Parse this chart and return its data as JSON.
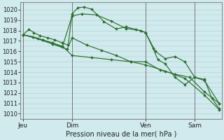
{
  "background_color": "#d0eaee",
  "grid_color": "#aacccc",
  "line_color": "#2d6e2d",
  "marker_color": "#2d6e2d",
  "title": "Pression niveau de la mer( hPa )",
  "ylabel_values": [
    1010,
    1011,
    1012,
    1013,
    1014,
    1015,
    1016,
    1017,
    1018,
    1019,
    1020
  ],
  "ylim": [
    1009.5,
    1020.7
  ],
  "xlim": [
    -0.05,
    4.05
  ],
  "xtick_labels": [
    "Jeu",
    "Dim",
    "Ven",
    "Sam"
  ],
  "xtick_positions": [
    0.0,
    1.0,
    2.5,
    3.5
  ],
  "vline_positions": [
    0.0,
    1.0,
    2.5,
    3.5
  ],
  "series": [
    {
      "x": [
        0.0,
        0.12,
        0.22,
        0.35,
        0.5,
        0.65,
        0.8,
        0.92,
        1.0,
        1.12,
        1.25,
        1.4,
        1.65,
        1.9,
        2.1,
        2.3,
        2.5,
        2.65,
        2.75,
        2.9,
        3.1,
        3.3,
        3.5,
        3.7,
        3.85,
        4.0
      ],
      "y": [
        1017.6,
        1018.1,
        1017.8,
        1017.5,
        1017.3,
        1017.1,
        1016.8,
        1016.6,
        1019.6,
        1020.2,
        1020.25,
        1020.05,
        1018.85,
        1018.15,
        1018.35,
        1018.1,
        1017.8,
        1016.3,
        1015.2,
        1014.8,
        1013.5,
        1012.8,
        1013.5,
        1013.3,
        1011.5,
        1010.5
      ]
    },
    {
      "x": [
        0.0,
        0.2,
        0.4,
        0.6,
        0.8,
        1.0,
        1.2,
        1.5,
        1.8,
        2.1,
        2.4,
        2.5,
        2.7,
        2.9,
        3.1,
        3.3,
        3.5,
        3.7,
        4.0
      ],
      "y": [
        1017.6,
        1017.4,
        1017.1,
        1016.8,
        1016.4,
        1019.4,
        1019.6,
        1019.5,
        1018.9,
        1018.2,
        1018.0,
        1017.8,
        1016.0,
        1015.3,
        1015.5,
        1015.0,
        1013.5,
        1013.2,
        1011.0
      ]
    },
    {
      "x": [
        0.0,
        0.3,
        0.6,
        0.9,
        1.0,
        1.3,
        1.6,
        1.9,
        2.2,
        2.5,
        2.8,
        3.1,
        3.4,
        3.7,
        4.0
      ],
      "y": [
        1017.6,
        1017.2,
        1016.7,
        1016.2,
        1017.3,
        1016.6,
        1016.1,
        1015.6,
        1015.0,
        1015.0,
        1014.2,
        1013.8,
        1013.5,
        1012.1,
        1011.0
      ]
    },
    {
      "x": [
        0.0,
        0.4,
        0.8,
        1.0,
        1.4,
        1.8,
        2.2,
        2.5,
        2.9,
        3.3,
        3.7,
        4.0
      ],
      "y": [
        1017.6,
        1017.1,
        1016.5,
        1015.6,
        1015.4,
        1015.2,
        1015.0,
        1014.7,
        1014.1,
        1013.4,
        1011.8,
        1010.4
      ]
    }
  ]
}
